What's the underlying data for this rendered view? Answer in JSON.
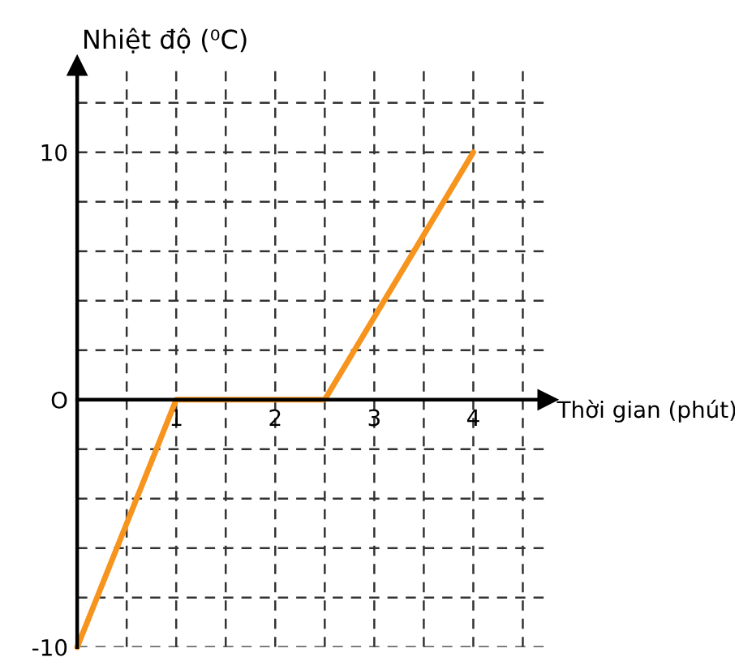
{
  "chart_data": {
    "type": "line",
    "xlabel": "Thời gian (phút)",
    "ylabel": "Nhiệt độ (⁰C)",
    "x": [
      0,
      1,
      2.5,
      4
    ],
    "series": [
      {
        "color": "#f7941d",
        "values": [
          -10,
          0,
          0,
          10
        ]
      }
    ],
    "xlim": [
      0,
      4.75
    ],
    "ylim": [
      -10,
      13.5
    ],
    "xticks": [
      {
        "value": 0.5,
        "label": null
      },
      1,
      {
        "value": 1.5,
        "label": null
      },
      2,
      {
        "value": 2.5,
        "label": null
      },
      3,
      {
        "value": 3.5,
        "label": null
      },
      4,
      {
        "value": 4.5,
        "label": null
      }
    ],
    "yticks": [
      {
        "value": -10,
        "label": "-10"
      },
      {
        "value": -8,
        "label": null
      },
      {
        "value": -6,
        "label": null
      },
      {
        "value": -4,
        "label": null
      },
      {
        "value": -2,
        "label": null
      },
      {
        "value": 0,
        "label": "O"
      },
      {
        "value": 2,
        "label": null
      },
      {
        "value": 4,
        "label": null
      },
      {
        "value": 6,
        "label": null
      },
      {
        "value": 8,
        "label": null
      },
      10,
      {
        "value": 12,
        "label": null
      }
    ],
    "grid": true,
    "marker": "none",
    "line_style": "solid"
  }
}
